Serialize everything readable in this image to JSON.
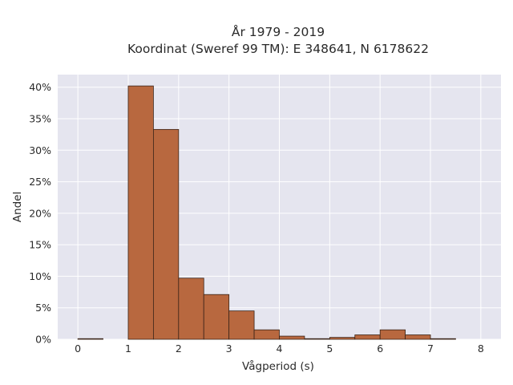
{
  "chart_data": {
    "type": "bar",
    "title": "År 1979 - 2019",
    "subtitle": "Koordinat (Sweref 99 TM): E 348641, N 6178622",
    "xlabel": "Vågperiod (s)",
    "ylabel": "Andel",
    "xlim": [
      -0.4,
      8.4
    ],
    "ylim": [
      0,
      0.42
    ],
    "xticks": [
      0,
      1,
      2,
      3,
      4,
      5,
      6,
      7,
      8
    ],
    "xtick_labels": [
      "0",
      "1",
      "2",
      "3",
      "4",
      "5",
      "6",
      "7",
      "8"
    ],
    "yticks": [
      0,
      0.05,
      0.1,
      0.15,
      0.2,
      0.25,
      0.3,
      0.35,
      0.4
    ],
    "ytick_labels": [
      "0%",
      "5%",
      "10%",
      "15%",
      "20%",
      "25%",
      "30%",
      "35%",
      "40%"
    ],
    "bin_edges": [
      0,
      0.5,
      1.0,
      1.5,
      2.0,
      2.5,
      3.0,
      3.5,
      4.0,
      4.5,
      5.0,
      5.5,
      6.0,
      6.5,
      7.0,
      7.5
    ],
    "values": [
      0.001,
      0.0,
      0.402,
      0.333,
      0.097,
      0.071,
      0.045,
      0.015,
      0.005,
      0.001,
      0.003,
      0.007,
      0.015,
      0.007,
      0.001
    ],
    "grid": true,
    "colors": {
      "bar_fill": "#b8683f",
      "bar_stroke": "#3a2418",
      "plot_background": "#e5e5ef",
      "grid": "#ffffff"
    }
  }
}
